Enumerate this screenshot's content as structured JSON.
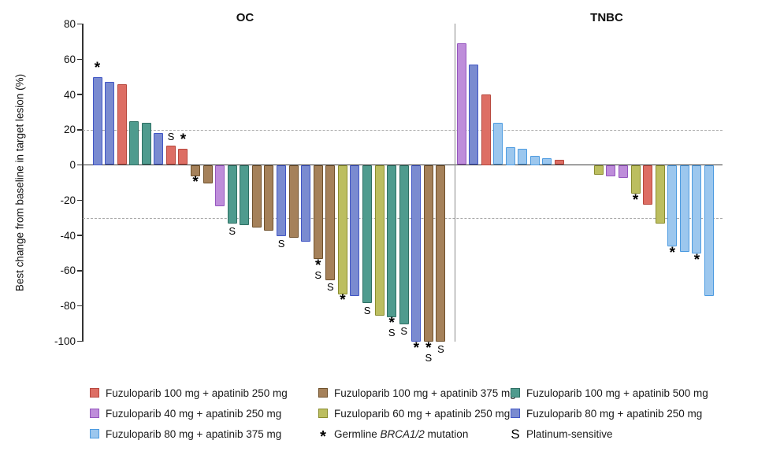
{
  "chart_data": {
    "type": "bar",
    "subtype": "waterfall",
    "ylabel": "Best change from baseline in target lesion (%)",
    "ylim": [
      -100,
      80
    ],
    "yticks": [
      80,
      60,
      40,
      20,
      0,
      -20,
      -40,
      -60,
      -80,
      -100
    ],
    "reference_lines": [
      20,
      -30
    ],
    "grid": false,
    "mark_legend": {
      "star": "Germline BRCA1/2 mutation",
      "S": "Platinum-sensitive"
    },
    "panels": [
      {
        "title": "OC",
        "bars": [
          {
            "value": 50,
            "group": "blue",
            "mark": "*"
          },
          {
            "value": 47,
            "group": "blue"
          },
          {
            "value": 46,
            "group": "red"
          },
          {
            "value": 25,
            "group": "teal"
          },
          {
            "value": 24,
            "group": "teal"
          },
          {
            "value": 18,
            "group": "blue"
          },
          {
            "value": 11,
            "group": "red",
            "mark": "S"
          },
          {
            "value": 9,
            "group": "red",
            "mark": "*"
          },
          {
            "value": -6,
            "group": "brown",
            "mark": "*"
          },
          {
            "value": -10,
            "group": "brown"
          },
          {
            "value": -23,
            "group": "purple"
          },
          {
            "value": -33,
            "group": "teal",
            "mark": "S"
          },
          {
            "value": -34,
            "group": "teal"
          },
          {
            "value": -35,
            "group": "brown"
          },
          {
            "value": -37,
            "group": "brown"
          },
          {
            "value": -40,
            "group": "blue",
            "mark": "S"
          },
          {
            "value": -41,
            "group": "brown"
          },
          {
            "value": -43,
            "group": "blue"
          },
          {
            "value": -53,
            "group": "brown",
            "mark": "*S"
          },
          {
            "value": -65,
            "group": "brown",
            "mark": "S"
          },
          {
            "value": -73,
            "group": "yellow",
            "mark": "*"
          },
          {
            "value": -74,
            "group": "blue"
          },
          {
            "value": -78,
            "group": "teal",
            "mark": "S"
          },
          {
            "value": -85,
            "group": "yellow"
          },
          {
            "value": -86,
            "group": "teal",
            "mark": "*S"
          },
          {
            "value": -90,
            "group": "teal",
            "mark": "S"
          },
          {
            "value": -100,
            "group": "blue",
            "mark": "*"
          },
          {
            "value": -100,
            "group": "brown",
            "mark": "*S"
          },
          {
            "value": -100,
            "group": "brown",
            "mark": "S"
          }
        ]
      },
      {
        "title": "TNBC",
        "gap_after": 9,
        "bars": [
          {
            "value": 69,
            "group": "purple"
          },
          {
            "value": 57,
            "group": "blue"
          },
          {
            "value": 40,
            "group": "red"
          },
          {
            "value": 24,
            "group": "lightblue"
          },
          {
            "value": 10,
            "group": "lightblue"
          },
          {
            "value": 9,
            "group": "lightblue"
          },
          {
            "value": 5,
            "group": "lightblue"
          },
          {
            "value": 4,
            "group": "lightblue"
          },
          {
            "value": 3,
            "group": "red"
          },
          {
            "value": -5,
            "group": "yellow"
          },
          {
            "value": -6,
            "group": "purple"
          },
          {
            "value": -7,
            "group": "purple"
          },
          {
            "value": -16,
            "group": "yellow",
            "mark": "*"
          },
          {
            "value": -22,
            "group": "red"
          },
          {
            "value": -33,
            "group": "yellow"
          },
          {
            "value": -46,
            "group": "lightblue",
            "mark": "*"
          },
          {
            "value": -49,
            "group": "lightblue"
          },
          {
            "value": -50,
            "group": "lightblue",
            "mark": "*"
          },
          {
            "value": -74,
            "group": "lightblue"
          }
        ]
      }
    ]
  },
  "palette": {
    "red": {
      "fill": "#DD6E64",
      "border": "#B7473D"
    },
    "brown": {
      "fill": "#A5815A",
      "border": "#6F502B"
    },
    "teal": {
      "fill": "#4F9B8E",
      "border": "#2E6F63"
    },
    "purple": {
      "fill": "#BE8DDA",
      "border": "#9455BE"
    },
    "yellow": {
      "fill": "#BCBE60",
      "border": "#8A8D2F"
    },
    "blue": {
      "fill": "#7A8BD0",
      "border": "#4156C5"
    },
    "lightblue": {
      "fill": "#9CC7EE",
      "border": "#4D9BE0"
    }
  },
  "legend": {
    "items": [
      {
        "swatch": "red",
        "label": "Fuzuloparib 100 mg + apatinib 250 mg"
      },
      {
        "swatch": "brown",
        "label": "Fuzuloparib 100 mg + apatinib 375 mg"
      },
      {
        "swatch": "teal",
        "label": "Fuzuloparib 100 mg + apatinib 500 mg"
      },
      {
        "swatch": "purple",
        "label": "Fuzuloparib 40 mg + apatinib 250 mg"
      },
      {
        "swatch": "yellow",
        "label": "Fuzuloparib 60 mg + apatinib 250 mg"
      },
      {
        "swatch": "blue",
        "label": "Fuzuloparib 80 mg + apatinib 250 mg"
      },
      {
        "swatch": "lightblue",
        "label": "Fuzuloparib 80 mg + apatinib 375 mg"
      },
      {
        "symbol": "*",
        "label_prefix": "Germline ",
        "label_italic": "BRCA1/2",
        "label_suffix": " mutation"
      },
      {
        "symbol": "S",
        "label": "Platinum-sensitive"
      }
    ]
  }
}
